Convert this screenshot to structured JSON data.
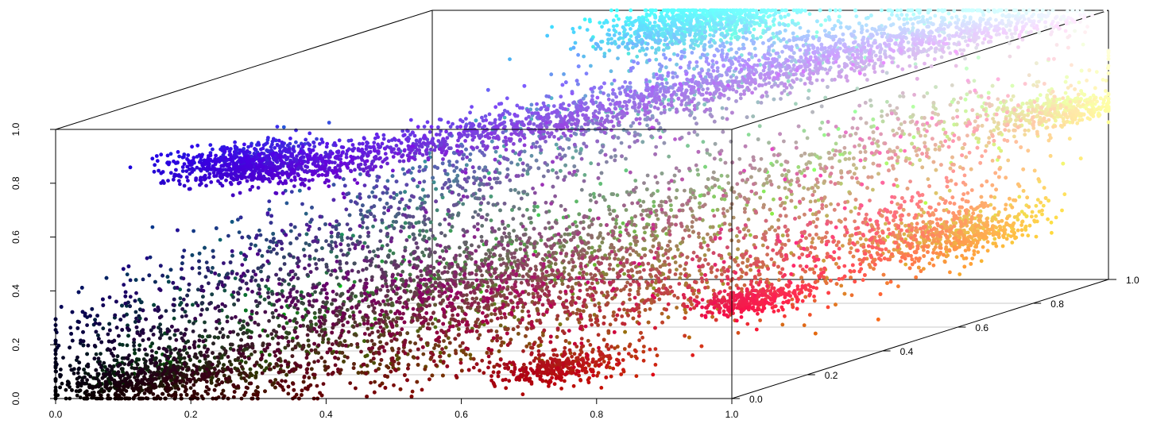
{
  "chart_data": {
    "type": "scatter",
    "title": "",
    "xlabel": "",
    "ylabel": "",
    "zlabel": "",
    "xlim": [
      0,
      1
    ],
    "ylim": [
      0,
      1
    ],
    "zlim": [
      0,
      1
    ],
    "x_ticks": [
      "0.0",
      "0.2",
      "0.4",
      "0.6",
      "0.8",
      "1.0"
    ],
    "y_ticks": [
      "0.0",
      "0.2",
      "0.4",
      "0.6",
      "0.8",
      "1.0"
    ],
    "z_ticks": [
      "0.0",
      "0.2",
      "0.4",
      "0.6",
      "0.8",
      "1.0"
    ],
    "grid": "depth floor grid only",
    "point_color": "each point coloured by its (x, y, z) value as RGB",
    "point_count_estimate": 60000,
    "clusters": [
      {
        "x": 0.42,
        "y": 0.95,
        "z": 0.98,
        "color": "#7aa2d8"
      },
      {
        "x": 0.25,
        "y": 0.05,
        "z": 0.85,
        "color": "#3f62b0"
      },
      {
        "x": 0.7,
        "y": 0.08,
        "z": 0.08,
        "color": "#a8181c"
      },
      {
        "x": 0.95,
        "y": 0.15,
        "z": 0.3,
        "color": "#ff6d4b"
      },
      {
        "x": 0.95,
        "y": 0.7,
        "z": 0.3,
        "color": "#ff9f6e"
      },
      {
        "x": 0.96,
        "y": 0.95,
        "z": 0.65,
        "color": "#fff5b8"
      },
      {
        "x": 0.5,
        "y": 0.25,
        "z": 0.35,
        "color": "#6f6a4d"
      },
      {
        "x": 0.1,
        "y": 0.05,
        "z": 0.05,
        "color": "#1b1311"
      }
    ]
  }
}
